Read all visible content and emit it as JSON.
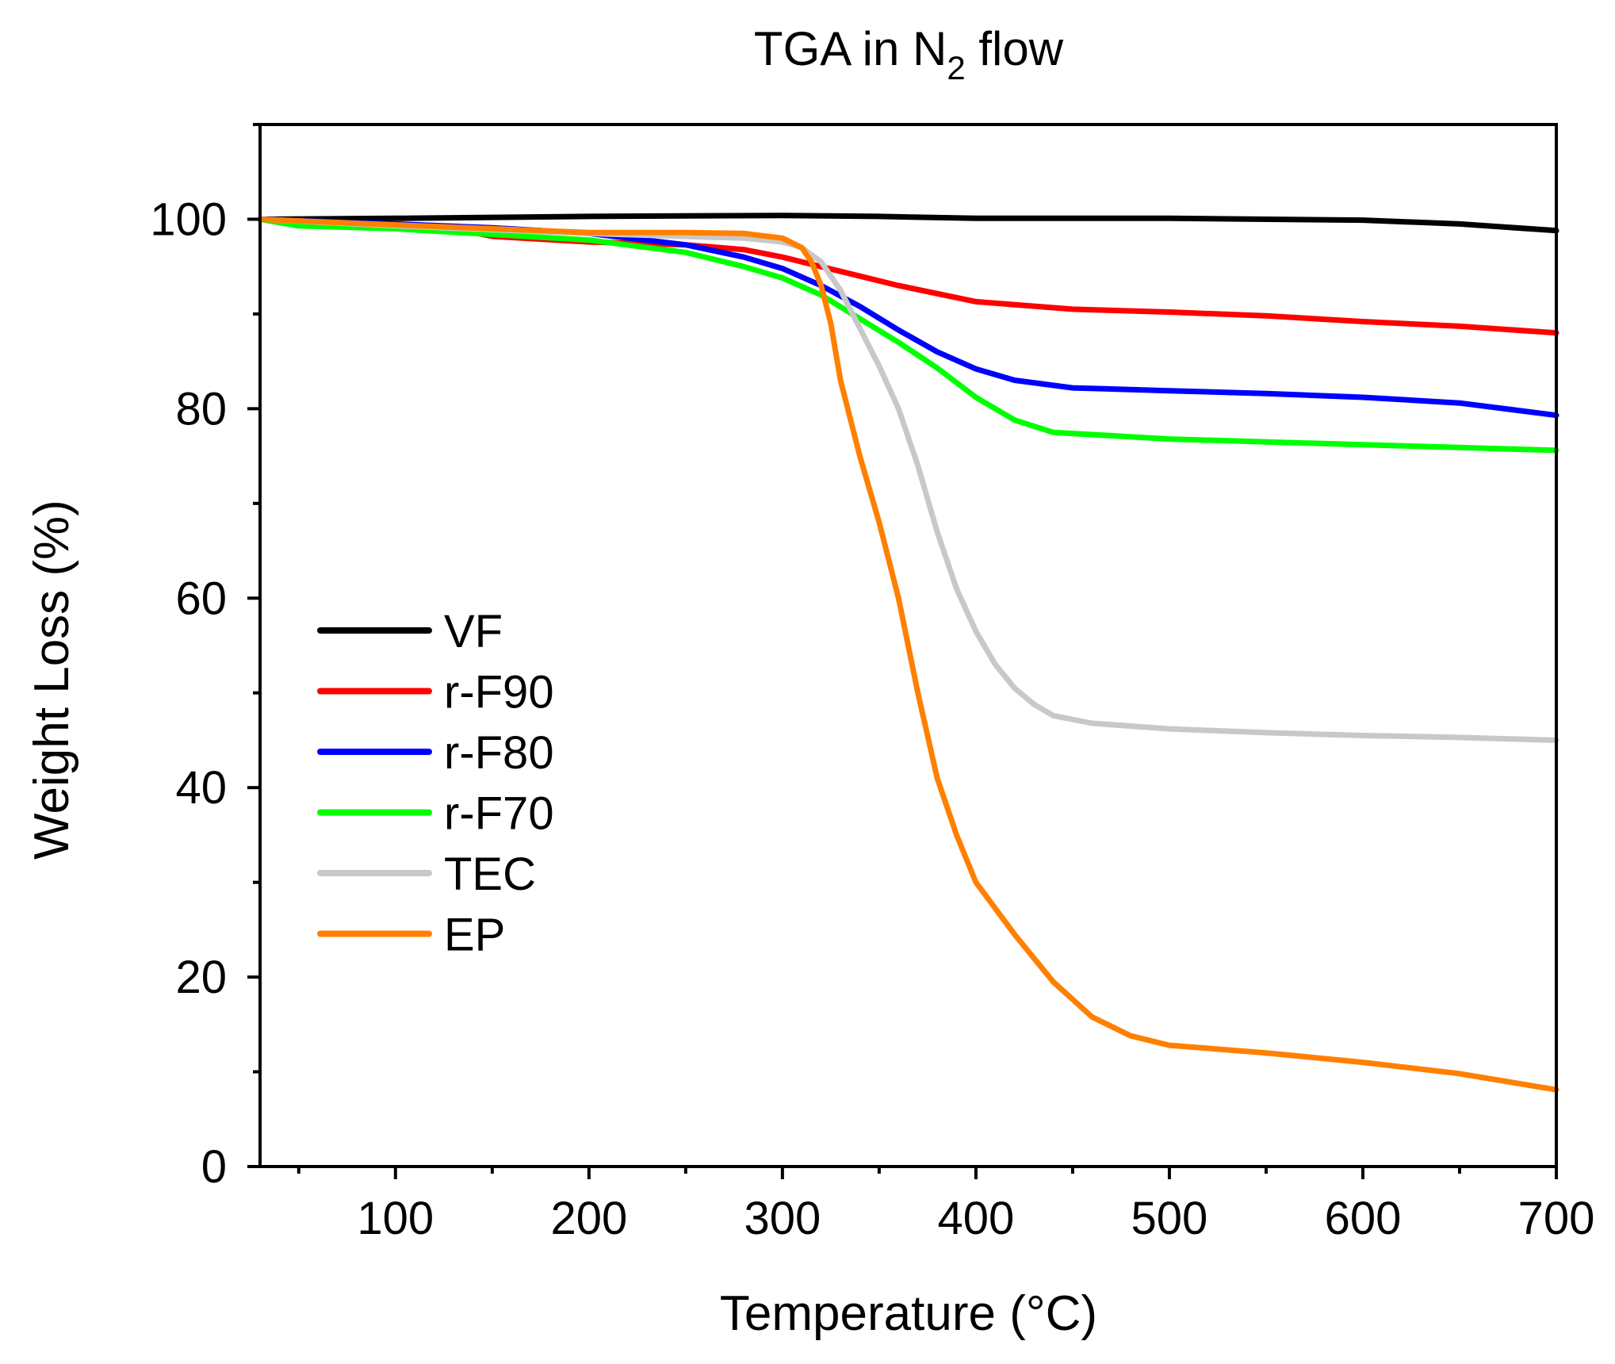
{
  "chart_data": {
    "type": "line",
    "title": "TGA in N",
    "title_subscript": "2",
    "title_suffix": " flow",
    "xlabel": "Temperature (°C)",
    "ylabel": "Weight Loss (%)",
    "xlim": [
      30,
      700
    ],
    "ylim": [
      0,
      110
    ],
    "xticks": [
      100,
      200,
      300,
      400,
      500,
      600,
      700
    ],
    "yticks": [
      0,
      20,
      40,
      60,
      80,
      100
    ],
    "x_minor_step": 50,
    "y_minor_step": 10,
    "legend_position": "center-left",
    "series": [
      {
        "name": "VF",
        "color": "#000000",
        "points": [
          [
            30,
            100
          ],
          [
            100,
            100.1
          ],
          [
            200,
            100.3
          ],
          [
            300,
            100.4
          ],
          [
            350,
            100.3
          ],
          [
            400,
            100.1
          ],
          [
            500,
            100.1
          ],
          [
            600,
            99.9
          ],
          [
            650,
            99.5
          ],
          [
            700,
            98.8
          ]
        ]
      },
      {
        "name": "r-F90",
        "color": "#ff0000",
        "points": [
          [
            30,
            100
          ],
          [
            100,
            99.3
          ],
          [
            130,
            99.0
          ],
          [
            150,
            98.2
          ],
          [
            200,
            97.6
          ],
          [
            250,
            97.3
          ],
          [
            280,
            96.8
          ],
          [
            300,
            96.0
          ],
          [
            330,
            94.5
          ],
          [
            360,
            93.0
          ],
          [
            400,
            91.3
          ],
          [
            450,
            90.5
          ],
          [
            500,
            90.2
          ],
          [
            550,
            89.8
          ],
          [
            600,
            89.2
          ],
          [
            650,
            88.7
          ],
          [
            700,
            88.0
          ]
        ]
      },
      {
        "name": "r-F80",
        "color": "#0000ff",
        "points": [
          [
            30,
            100
          ],
          [
            100,
            99.5
          ],
          [
            150,
            99.1
          ],
          [
            200,
            98.5
          ],
          [
            250,
            97.3
          ],
          [
            280,
            96.0
          ],
          [
            300,
            94.8
          ],
          [
            320,
            93.0
          ],
          [
            340,
            90.8
          ],
          [
            360,
            88.3
          ],
          [
            380,
            86.0
          ],
          [
            400,
            84.2
          ],
          [
            420,
            83.0
          ],
          [
            450,
            82.2
          ],
          [
            500,
            81.9
          ],
          [
            550,
            81.6
          ],
          [
            600,
            81.2
          ],
          [
            650,
            80.6
          ],
          [
            700,
            79.3
          ]
        ]
      },
      {
        "name": "r-F70",
        "color": "#00ff00",
        "points": [
          [
            30,
            100
          ],
          [
            50,
            99.3
          ],
          [
            100,
            99.0
          ],
          [
            150,
            98.4
          ],
          [
            200,
            97.8
          ],
          [
            250,
            96.5
          ],
          [
            280,
            95.0
          ],
          [
            300,
            93.8
          ],
          [
            320,
            92.0
          ],
          [
            340,
            89.5
          ],
          [
            360,
            87.0
          ],
          [
            380,
            84.3
          ],
          [
            400,
            81.2
          ],
          [
            420,
            78.8
          ],
          [
            440,
            77.5
          ],
          [
            500,
            76.8
          ],
          [
            550,
            76.5
          ],
          [
            600,
            76.2
          ],
          [
            650,
            75.9
          ],
          [
            700,
            75.6
          ]
        ]
      },
      {
        "name": "TEC",
        "color": "#c8c8c8",
        "points": [
          [
            30,
            100
          ],
          [
            100,
            99.3
          ],
          [
            200,
            98.5
          ],
          [
            280,
            98.0
          ],
          [
            300,
            97.6
          ],
          [
            310,
            97.0
          ],
          [
            320,
            95.5
          ],
          [
            330,
            92.5
          ],
          [
            340,
            88.5
          ],
          [
            350,
            84.5
          ],
          [
            360,
            80.0
          ],
          [
            370,
            74.0
          ],
          [
            380,
            67.0
          ],
          [
            390,
            61.0
          ],
          [
            400,
            56.5
          ],
          [
            410,
            53.0
          ],
          [
            420,
            50.5
          ],
          [
            430,
            48.8
          ],
          [
            440,
            47.6
          ],
          [
            460,
            46.8
          ],
          [
            500,
            46.2
          ],
          [
            550,
            45.8
          ],
          [
            600,
            45.5
          ],
          [
            650,
            45.3
          ],
          [
            700,
            45.0
          ]
        ]
      },
      {
        "name": "EP",
        "color": "#ff8000",
        "points": [
          [
            30,
            100
          ],
          [
            100,
            99.4
          ],
          [
            200,
            98.6
          ],
          [
            250,
            98.6
          ],
          [
            280,
            98.5
          ],
          [
            300,
            98.0
          ],
          [
            310,
            97.0
          ],
          [
            315,
            95.5
          ],
          [
            320,
            93.0
          ],
          [
            325,
            89.0
          ],
          [
            330,
            83.0
          ],
          [
            340,
            75.0
          ],
          [
            350,
            68.0
          ],
          [
            360,
            60.0
          ],
          [
            370,
            50.0
          ],
          [
            380,
            41.0
          ],
          [
            390,
            35.0
          ],
          [
            400,
            30.0
          ],
          [
            420,
            24.5
          ],
          [
            440,
            19.5
          ],
          [
            460,
            15.8
          ],
          [
            480,
            13.8
          ],
          [
            500,
            12.8
          ],
          [
            550,
            12.0
          ],
          [
            600,
            11.0
          ],
          [
            650,
            9.8
          ],
          [
            700,
            8.1
          ]
        ]
      }
    ]
  }
}
